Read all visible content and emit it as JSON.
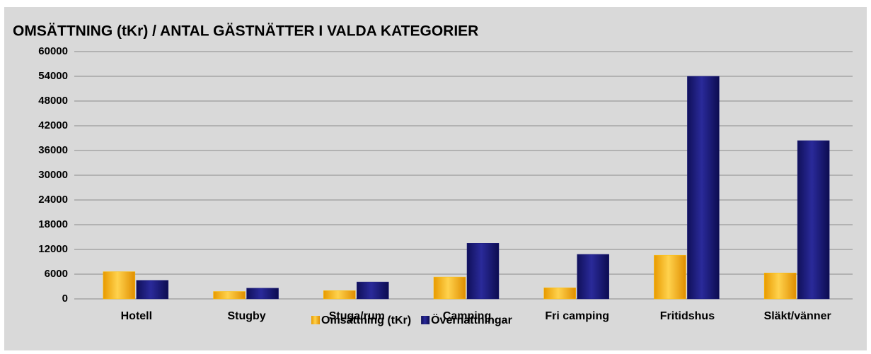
{
  "chart_data": {
    "type": "bar",
    "title": "OMSÄTTNING (tKr) / ANTAL GÄSTNÄTTER I VALDA KATEGORIER",
    "categories": [
      "Hotell",
      "Stugby",
      "Stuga/rum",
      "Camping",
      "Fri camping",
      "Fritidshus",
      "Släkt/vänner"
    ],
    "series": [
      {
        "name": "Omsättning (tKr)",
        "color": "#ffc000",
        "values": [
          6600,
          1800,
          2000,
          5300,
          2700,
          10600,
          6300
        ]
      },
      {
        "name": "Övernattningar",
        "color": "#1c1c7c",
        "values": [
          4500,
          2600,
          4100,
          13500,
          10800,
          54000,
          38400
        ]
      }
    ],
    "ylim": [
      0,
      60000
    ],
    "yticks": [
      0,
      6000,
      12000,
      18000,
      24000,
      30000,
      36000,
      42000,
      48000,
      54000,
      60000
    ],
    "grid": true,
    "legend": "bottom"
  }
}
